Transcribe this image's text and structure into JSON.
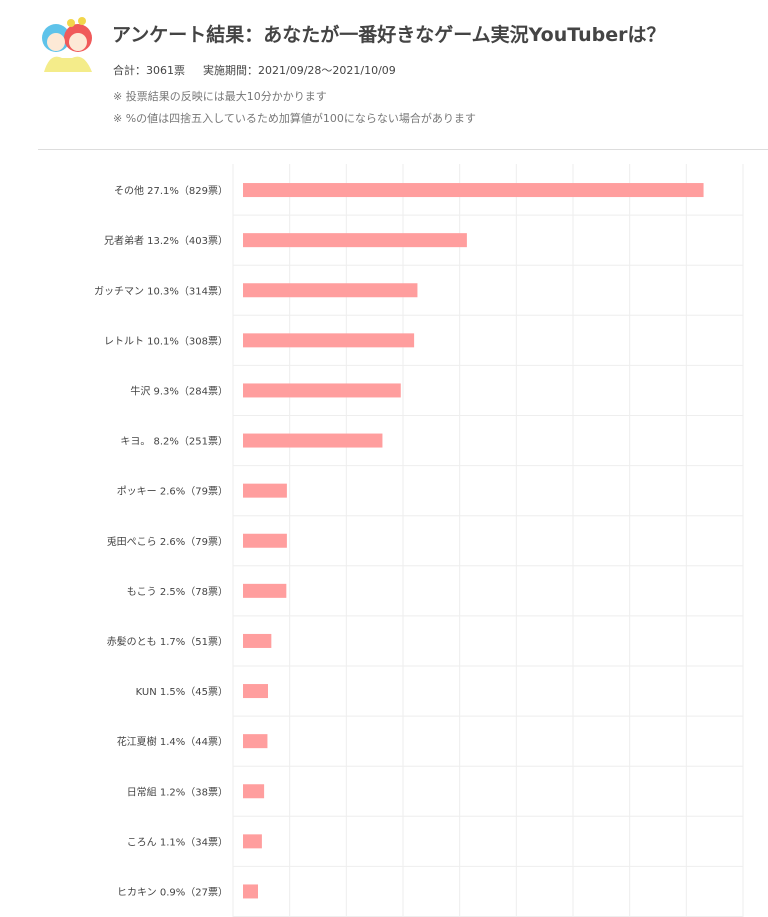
{
  "header": {
    "title": "アンケート結果：あなたが一番好きなゲーム実況YouTuberは？",
    "total": "合計：3061票",
    "period": "実施期間：2021/09/28〜2021/10/09",
    "note1": "※ 投票結果の反映には最大10分かかります",
    "note2": "※ %の値は四捨五入しているため加算値が100にならない場合があります"
  },
  "colors": {
    "bar": "#ff9e9e",
    "grid": "#eeeeee"
  },
  "chart_data": {
    "type": "bar",
    "orientation": "horizontal",
    "categories": [
      "その他 27.1%（829票）",
      "兄者弟者 13.2%（403票）",
      "ガッチマン 10.3%（314票）",
      "レトルト 10.1%（308票）",
      "牛沢 9.3%（284票）",
      "キヨ。 8.2%（251票）",
      "ポッキー 2.6%（79票）",
      "兎田ぺこら 2.6%（79票）",
      "もこう 2.5%（78票）",
      "赤髪のとも 1.7%（51票）",
      "KUN 1.5%（45票）",
      "花江夏樹 1.4%（44票）",
      "日常組 1.2%（38票）",
      "ころん 1.1%（34票）",
      "ヒカキン 0.9%（27票）"
    ],
    "values": [
      829,
      403,
      314,
      308,
      284,
      251,
      79,
      79,
      78,
      51,
      45,
      44,
      38,
      34,
      27
    ],
    "xlim": [
      0,
      900
    ],
    "grid": true,
    "legend": "none"
  }
}
